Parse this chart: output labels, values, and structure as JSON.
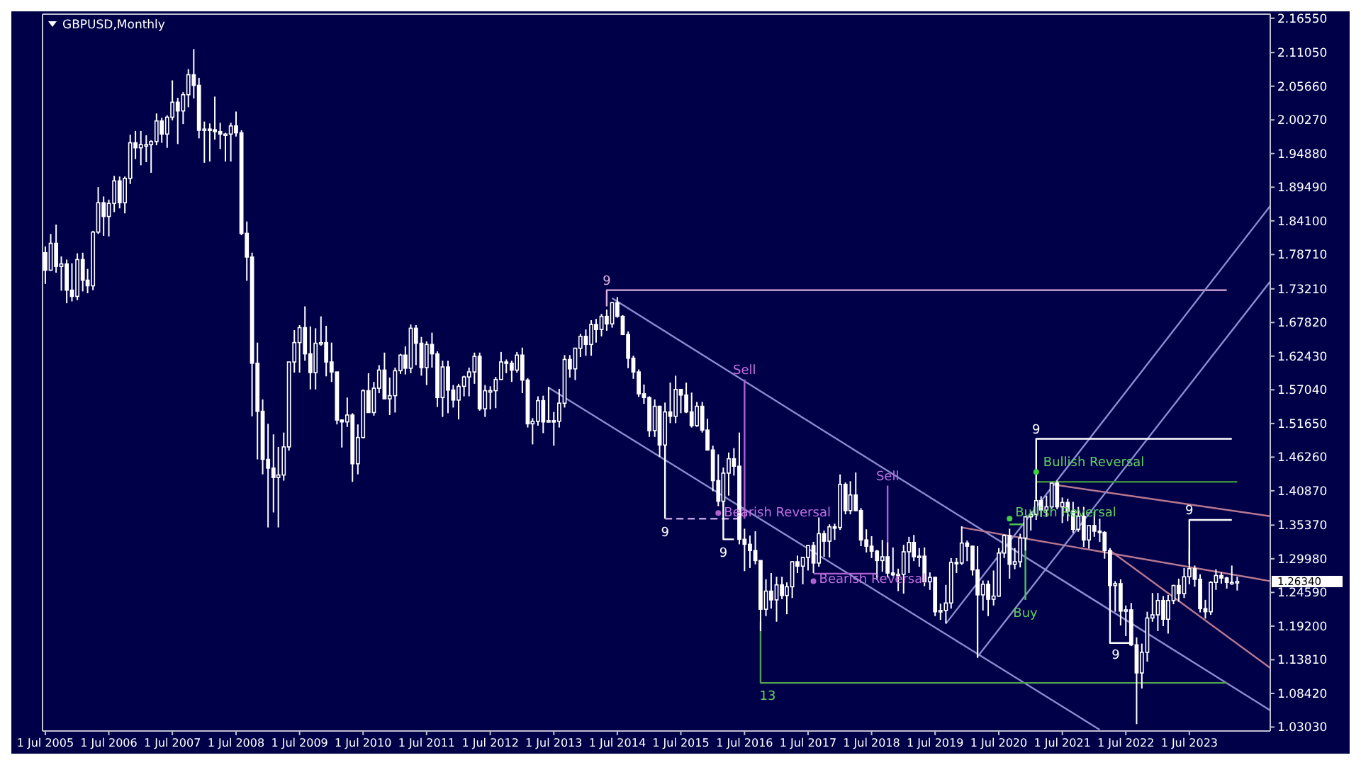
{
  "chart_data": {
    "type": "candlestick",
    "title": "GBPUSD,Monthly",
    "color": "#ffffff",
    "xlim": [
      "2005-06-15",
      "2024-10-08"
    ],
    "xticks": [
      {
        "value": "2005-07-01",
        "label": "1 Jul 2005"
      },
      {
        "value": "2006-07-01",
        "label": "1 Jul 2006"
      },
      {
        "value": "2007-07-01",
        "label": "1 Jul 2007"
      },
      {
        "value": "2008-07-01",
        "label": "1 Jul 2008"
      },
      {
        "value": "2009-07-01",
        "label": "1 Jul 2009"
      },
      {
        "value": "2010-07-01",
        "label": "1 Jul 2010"
      },
      {
        "value": "2011-07-01",
        "label": "1 Jul 2011"
      },
      {
        "value": "2012-07-01",
        "label": "1 Jul 2012"
      },
      {
        "value": "2013-07-01",
        "label": "1 Jul 2013"
      },
      {
        "value": "2014-07-01",
        "label": "1 Jul 2014"
      },
      {
        "value": "2015-07-01",
        "label": "1 Jul 2015"
      },
      {
        "value": "2016-07-01",
        "label": "1 Jul 2016"
      },
      {
        "value": "2017-07-01",
        "label": "1 Jul 2017"
      },
      {
        "value": "2018-07-01",
        "label": "1 Jul 2018"
      },
      {
        "value": "2019-07-01",
        "label": "1 Jul 2019"
      },
      {
        "value": "2020-07-01",
        "label": "1 Jul 2020"
      },
      {
        "value": "2021-07-01",
        "label": "1 Jul 2021"
      },
      {
        "value": "2022-07-01",
        "label": "1 Jul 2022"
      },
      {
        "value": "2023-07-01",
        "label": "1 Jul 2023"
      }
    ],
    "ylim": [
      1.024,
      2.172
    ],
    "yticks": [
      {
        "value": 2.1655,
        "label": "2.16550"
      },
      {
        "value": 2.1105,
        "label": "2.11050"
      },
      {
        "value": 2.0566,
        "label": "2.05660"
      },
      {
        "value": 2.0027,
        "label": "2.00270"
      },
      {
        "value": 1.9488,
        "label": "1.94880"
      },
      {
        "value": 1.8949,
        "label": "1.89490"
      },
      {
        "value": 1.841,
        "label": "1.84100"
      },
      {
        "value": 1.7871,
        "label": "1.78710"
      },
      {
        "value": 1.7321,
        "label": "1.73210"
      },
      {
        "value": 1.6782,
        "label": "1.67820"
      },
      {
        "value": 1.6243,
        "label": "1.62430"
      },
      {
        "value": 1.5704,
        "label": "1.57040"
      },
      {
        "value": 1.5165,
        "label": "1.51650"
      },
      {
        "value": 1.4626,
        "label": "1.46260"
      },
      {
        "value": 1.4087,
        "label": "1.40870"
      },
      {
        "value": 1.3537,
        "label": "1.35370"
      },
      {
        "value": 1.2998,
        "label": "1.29980"
      },
      {
        "value": 1.2459,
        "label": "1.24590"
      },
      {
        "value": 1.192,
        "label": "1.19200"
      },
      {
        "value": 1.1381,
        "label": "1.13810"
      },
      {
        "value": 1.0842,
        "label": "1.08420"
      },
      {
        "value": 1.0303,
        "label": "1.03030"
      }
    ],
    "x": [
      "2005-07",
      "2005-08",
      "2005-09",
      "2005-10",
      "2005-11",
      "2005-12",
      "2006-01",
      "2006-02",
      "2006-03",
      "2006-04",
      "2006-05",
      "2006-06",
      "2006-07",
      "2006-08",
      "2006-09",
      "2006-10",
      "2006-11",
      "2006-12",
      "2007-01",
      "2007-02",
      "2007-03",
      "2007-04",
      "2007-05",
      "2007-06",
      "2007-07",
      "2007-08",
      "2007-09",
      "2007-10",
      "2007-11",
      "2007-12",
      "2008-01",
      "2008-02",
      "2008-03",
      "2008-04",
      "2008-05",
      "2008-06",
      "2008-07",
      "2008-08",
      "2008-09",
      "2008-10",
      "2008-11",
      "2008-12",
      "2009-01",
      "2009-02",
      "2009-03",
      "2009-04",
      "2009-05",
      "2009-06",
      "2009-07",
      "2009-08",
      "2009-09",
      "2009-10",
      "2009-11",
      "2009-12",
      "2010-01",
      "2010-02",
      "2010-03",
      "2010-04",
      "2010-05",
      "2010-06",
      "2010-07",
      "2010-08",
      "2010-09",
      "2010-10",
      "2010-11",
      "2010-12",
      "2011-01",
      "2011-02",
      "2011-03",
      "2011-04",
      "2011-05",
      "2011-06",
      "2011-07",
      "2011-08",
      "2011-09",
      "2011-10",
      "2011-11",
      "2011-12",
      "2012-01",
      "2012-02",
      "2012-03",
      "2012-04",
      "2012-05",
      "2012-06",
      "2012-07",
      "2012-08",
      "2012-09",
      "2012-10",
      "2012-11",
      "2012-12",
      "2013-01",
      "2013-02",
      "2013-03",
      "2013-04",
      "2013-05",
      "2013-06",
      "2013-07",
      "2013-08",
      "2013-09",
      "2013-10",
      "2013-11",
      "2013-12",
      "2014-01",
      "2014-02",
      "2014-03",
      "2014-04",
      "2014-05",
      "2014-06",
      "2014-07",
      "2014-08",
      "2014-09",
      "2014-10",
      "2014-11",
      "2014-12",
      "2015-01",
      "2015-02",
      "2015-03",
      "2015-04",
      "2015-05",
      "2015-06",
      "2015-07",
      "2015-08",
      "2015-09",
      "2015-10",
      "2015-11",
      "2015-12",
      "2016-01",
      "2016-02",
      "2016-03",
      "2016-04",
      "2016-05",
      "2016-06",
      "2016-07",
      "2016-08",
      "2016-09",
      "2016-10",
      "2016-11",
      "2016-12",
      "2017-01",
      "2017-02",
      "2017-03",
      "2017-04",
      "2017-05",
      "2017-06",
      "2017-07",
      "2017-08",
      "2017-09",
      "2017-10",
      "2017-11",
      "2017-12",
      "2018-01",
      "2018-02",
      "2018-03",
      "2018-04",
      "2018-05",
      "2018-06",
      "2018-07",
      "2018-08",
      "2018-09",
      "2018-10",
      "2018-11",
      "2018-12",
      "2019-01",
      "2019-02",
      "2019-03",
      "2019-04",
      "2019-05",
      "2019-06",
      "2019-07",
      "2019-08",
      "2019-09",
      "2019-10",
      "2019-11",
      "2019-12",
      "2020-01",
      "2020-02",
      "2020-03",
      "2020-04",
      "2020-05",
      "2020-06",
      "2020-07",
      "2020-08",
      "2020-09",
      "2020-10",
      "2020-11",
      "2020-12",
      "2021-01",
      "2021-02",
      "2021-03",
      "2021-04",
      "2021-05",
      "2021-06",
      "2021-07",
      "2021-08",
      "2021-09",
      "2021-10",
      "2021-11",
      "2021-12",
      "2022-01",
      "2022-02",
      "2022-03",
      "2022-04",
      "2022-05",
      "2022-06",
      "2022-07",
      "2022-08",
      "2022-09",
      "2022-10",
      "2022-11",
      "2022-12",
      "2023-01",
      "2023-02",
      "2023-03",
      "2023-04",
      "2023-05",
      "2023-06",
      "2023-07",
      "2023-08",
      "2023-09",
      "2023-10",
      "2023-11",
      "2023-12",
      "2024-01",
      "2024-02",
      "2024-03",
      "2024-04"
    ],
    "ohlc": [
      [
        1.79,
        1.8,
        1.74,
        1.762
      ],
      [
        1.762,
        1.82,
        1.761,
        1.805
      ],
      [
        1.805,
        1.835,
        1.758,
        1.768
      ],
      [
        1.768,
        1.784,
        1.729,
        1.772
      ],
      [
        1.772,
        1.779,
        1.709,
        1.73
      ],
      [
        1.73,
        1.773,
        1.712,
        1.72
      ],
      [
        1.72,
        1.789,
        1.714,
        1.779
      ],
      [
        1.779,
        1.79,
        1.728,
        1.746
      ],
      [
        1.746,
        1.764,
        1.725,
        1.737
      ],
      [
        1.737,
        1.825,
        1.73,
        1.823
      ],
      [
        1.823,
        1.895,
        1.82,
        1.87
      ],
      [
        1.87,
        1.88,
        1.817,
        1.848
      ],
      [
        1.848,
        1.875,
        1.816,
        1.869
      ],
      [
        1.869,
        1.913,
        1.855,
        1.905
      ],
      [
        1.905,
        1.912,
        1.861,
        1.87
      ],
      [
        1.87,
        1.912,
        1.853,
        1.909
      ],
      [
        1.909,
        1.979,
        1.9,
        1.966
      ],
      [
        1.966,
        1.985,
        1.94,
        1.958
      ],
      [
        1.958,
        1.985,
        1.93,
        1.963
      ],
      [
        1.963,
        1.978,
        1.935,
        1.963
      ],
      [
        1.963,
        1.97,
        1.918,
        1.968
      ],
      [
        1.968,
        2.013,
        1.962,
        2.001
      ],
      [
        2.001,
        2.006,
        1.966,
        1.98
      ],
      [
        1.98,
        2.01,
        1.958,
        2.007
      ],
      [
        2.007,
        2.066,
        2.002,
        2.031
      ],
      [
        2.031,
        2.038,
        1.964,
        2.017
      ],
      [
        2.017,
        2.047,
        1.996,
        2.043
      ],
      [
        2.043,
        2.084,
        2.023,
        2.075
      ],
      [
        2.075,
        2.116,
        2.037,
        2.058
      ],
      [
        2.058,
        2.07,
        1.973,
        1.986
      ],
      [
        1.986,
        2.0,
        1.934,
        1.988
      ],
      [
        1.988,
        1.997,
        1.936,
        1.987
      ],
      [
        1.987,
        2.04,
        1.971,
        1.984
      ],
      [
        1.984,
        1.998,
        1.956,
        1.98
      ],
      [
        1.98,
        1.982,
        1.936,
        1.98
      ],
      [
        1.98,
        1.998,
        1.936,
        1.993
      ],
      [
        1.993,
        2.016,
        1.976,
        1.982
      ],
      [
        1.982,
        1.986,
        1.818,
        1.821
      ],
      [
        1.821,
        1.84,
        1.745,
        1.783
      ],
      [
        1.783,
        1.79,
        1.528,
        1.613
      ],
      [
        1.613,
        1.646,
        1.459,
        1.536
      ],
      [
        1.536,
        1.555,
        1.435,
        1.459
      ],
      [
        1.459,
        1.516,
        1.35,
        1.445
      ],
      [
        1.445,
        1.499,
        1.374,
        1.43
      ],
      [
        1.43,
        1.479,
        1.35,
        1.434
      ],
      [
        1.434,
        1.502,
        1.425,
        1.479
      ],
      [
        1.479,
        1.615,
        1.473,
        1.615
      ],
      [
        1.615,
        1.666,
        1.598,
        1.646
      ],
      [
        1.646,
        1.674,
        1.598,
        1.67
      ],
      [
        1.67,
        1.704,
        1.617,
        1.628
      ],
      [
        1.628,
        1.672,
        1.571,
        1.598
      ],
      [
        1.598,
        1.669,
        1.571,
        1.645
      ],
      [
        1.645,
        1.688,
        1.641,
        1.646
      ],
      [
        1.646,
        1.673,
        1.592,
        1.615
      ],
      [
        1.615,
        1.646,
        1.583,
        1.599
      ],
      [
        1.599,
        1.599,
        1.515,
        1.522
      ],
      [
        1.522,
        1.523,
        1.478,
        1.519
      ],
      [
        1.519,
        1.558,
        1.511,
        1.53
      ],
      [
        1.53,
        1.533,
        1.423,
        1.452
      ],
      [
        1.452,
        1.515,
        1.435,
        1.494
      ],
      [
        1.494,
        1.571,
        1.493,
        1.569
      ],
      [
        1.569,
        1.597,
        1.534,
        1.534
      ],
      [
        1.534,
        1.583,
        1.529,
        1.573
      ],
      [
        1.573,
        1.61,
        1.565,
        1.602
      ],
      [
        1.602,
        1.63,
        1.556,
        1.556
      ],
      [
        1.556,
        1.59,
        1.53,
        1.561
      ],
      [
        1.561,
        1.606,
        1.534,
        1.601
      ],
      [
        1.601,
        1.628,
        1.596,
        1.626
      ],
      [
        1.626,
        1.64,
        1.595,
        1.605
      ],
      [
        1.605,
        1.675,
        1.597,
        1.669
      ],
      [
        1.669,
        1.674,
        1.61,
        1.645
      ],
      [
        1.645,
        1.655,
        1.593,
        1.606
      ],
      [
        1.606,
        1.648,
        1.578,
        1.643
      ],
      [
        1.643,
        1.662,
        1.606,
        1.628
      ],
      [
        1.628,
        1.632,
        1.543,
        1.558
      ],
      [
        1.558,
        1.617,
        1.527,
        1.607
      ],
      [
        1.607,
        1.617,
        1.533,
        1.57
      ],
      [
        1.57,
        1.578,
        1.542,
        1.554
      ],
      [
        1.554,
        1.58,
        1.523,
        1.576
      ],
      [
        1.576,
        1.593,
        1.56,
        1.591
      ],
      [
        1.591,
        1.606,
        1.56,
        1.599
      ],
      [
        1.599,
        1.63,
        1.58,
        1.624
      ],
      [
        1.624,
        1.63,
        1.537,
        1.54
      ],
      [
        1.54,
        1.578,
        1.527,
        1.569
      ],
      [
        1.569,
        1.576,
        1.539,
        1.569
      ],
      [
        1.569,
        1.591,
        1.541,
        1.587
      ],
      [
        1.587,
        1.631,
        1.586,
        1.615
      ],
      [
        1.615,
        1.619,
        1.597,
        1.613
      ],
      [
        1.613,
        1.617,
        1.583,
        1.602
      ],
      [
        1.602,
        1.631,
        1.598,
        1.626
      ],
      [
        1.626,
        1.638,
        1.565,
        1.586
      ],
      [
        1.586,
        1.589,
        1.51,
        1.516
      ],
      [
        1.516,
        1.525,
        1.483,
        1.52
      ],
      [
        1.52,
        1.56,
        1.513,
        1.553
      ],
      [
        1.553,
        1.561,
        1.501,
        1.519
      ],
      [
        1.519,
        1.575,
        1.518,
        1.521
      ],
      [
        1.521,
        1.535,
        1.481,
        1.52
      ],
      [
        1.52,
        1.572,
        1.51,
        1.549
      ],
      [
        1.549,
        1.626,
        1.542,
        1.619
      ],
      [
        1.619,
        1.626,
        1.59,
        1.604
      ],
      [
        1.604,
        1.638,
        1.586,
        1.637
      ],
      [
        1.637,
        1.66,
        1.623,
        1.656
      ],
      [
        1.656,
        1.667,
        1.625,
        1.643
      ],
      [
        1.643,
        1.682,
        1.625,
        1.675
      ],
      [
        1.675,
        1.684,
        1.646,
        1.667
      ],
      [
        1.667,
        1.692,
        1.656,
        1.688
      ],
      [
        1.688,
        1.699,
        1.665,
        1.676
      ],
      [
        1.676,
        1.711,
        1.67,
        1.71
      ],
      [
        1.71,
        1.719,
        1.686,
        1.688
      ],
      [
        1.688,
        1.69,
        1.658,
        1.659
      ],
      [
        1.659,
        1.664,
        1.605,
        1.621
      ],
      [
        1.621,
        1.625,
        1.588,
        1.599
      ],
      [
        1.599,
        1.603,
        1.559,
        1.564
      ],
      [
        1.564,
        1.579,
        1.548,
        1.558
      ],
      [
        1.558,
        1.56,
        1.495,
        1.505
      ],
      [
        1.505,
        1.555,
        1.495,
        1.544
      ],
      [
        1.544,
        1.545,
        1.463,
        1.482
      ],
      [
        1.482,
        1.55,
        1.456,
        1.535
      ],
      [
        1.535,
        1.582,
        1.517,
        1.528
      ],
      [
        1.528,
        1.593,
        1.517,
        1.571
      ],
      [
        1.571,
        1.572,
        1.533,
        1.562
      ],
      [
        1.562,
        1.582,
        1.533,
        1.535
      ],
      [
        1.535,
        1.566,
        1.51,
        1.513
      ],
      [
        1.513,
        1.551,
        1.511,
        1.544
      ],
      [
        1.544,
        1.551,
        1.502,
        1.506
      ],
      [
        1.506,
        1.524,
        1.474,
        1.474
      ],
      [
        1.474,
        1.481,
        1.408,
        1.425
      ],
      [
        1.425,
        1.467,
        1.384,
        1.392
      ],
      [
        1.392,
        1.446,
        1.384,
        1.437
      ],
      [
        1.437,
        1.47,
        1.401,
        1.46
      ],
      [
        1.46,
        1.477,
        1.433,
        1.448
      ],
      [
        1.448,
        1.502,
        1.323,
        1.331
      ],
      [
        1.331,
        1.348,
        1.28,
        1.323
      ],
      [
        1.323,
        1.337,
        1.285,
        1.313
      ],
      [
        1.313,
        1.344,
        1.291,
        1.297
      ],
      [
        1.297,
        1.297,
        1.184,
        1.219
      ],
      [
        1.219,
        1.267,
        1.208,
        1.248
      ],
      [
        1.248,
        1.277,
        1.22,
        1.234
      ],
      [
        1.234,
        1.271,
        1.199,
        1.258
      ],
      [
        1.258,
        1.271,
        1.235,
        1.241
      ],
      [
        1.241,
        1.262,
        1.211,
        1.255
      ],
      [
        1.255,
        1.296,
        1.237,
        1.295
      ],
      [
        1.295,
        1.305,
        1.277,
        1.288
      ],
      [
        1.288,
        1.303,
        1.259,
        1.302
      ],
      [
        1.302,
        1.321,
        1.281,
        1.321
      ],
      [
        1.321,
        1.327,
        1.277,
        1.293
      ],
      [
        1.293,
        1.366,
        1.287,
        1.34
      ],
      [
        1.34,
        1.345,
        1.303,
        1.328
      ],
      [
        1.328,
        1.355,
        1.302,
        1.351
      ],
      [
        1.351,
        1.356,
        1.33,
        1.35
      ],
      [
        1.35,
        1.435,
        1.346,
        1.419
      ],
      [
        1.419,
        1.422,
        1.371,
        1.377
      ],
      [
        1.377,
        1.424,
        1.371,
        1.402
      ],
      [
        1.402,
        1.438,
        1.376,
        1.377
      ],
      [
        1.377,
        1.381,
        1.32,
        1.33
      ],
      [
        1.33,
        1.347,
        1.31,
        1.32
      ],
      [
        1.32,
        1.336,
        1.301,
        1.312
      ],
      [
        1.312,
        1.314,
        1.266,
        1.297
      ],
      [
        1.297,
        1.33,
        1.279,
        1.303
      ],
      [
        1.303,
        1.326,
        1.27,
        1.277
      ],
      [
        1.277,
        1.318,
        1.272,
        1.274
      ],
      [
        1.274,
        1.284,
        1.248,
        1.275
      ],
      [
        1.275,
        1.322,
        1.244,
        1.311
      ],
      [
        1.311,
        1.335,
        1.277,
        1.326
      ],
      [
        1.326,
        1.338,
        1.296,
        1.303
      ],
      [
        1.303,
        1.317,
        1.287,
        1.304
      ],
      [
        1.304,
        1.318,
        1.256,
        1.263
      ],
      [
        1.263,
        1.278,
        1.25,
        1.27
      ],
      [
        1.27,
        1.271,
        1.208,
        1.215
      ],
      [
        1.215,
        1.228,
        1.202,
        1.217
      ],
      [
        1.217,
        1.258,
        1.196,
        1.229
      ],
      [
        1.229,
        1.301,
        1.22,
        1.294
      ],
      [
        1.294,
        1.301,
        1.277,
        1.293
      ],
      [
        1.293,
        1.352,
        1.29,
        1.325
      ],
      [
        1.325,
        1.329,
        1.296,
        1.32
      ],
      [
        1.32,
        1.321,
        1.273,
        1.282
      ],
      [
        1.282,
        1.32,
        1.141,
        1.242
      ],
      [
        1.242,
        1.265,
        1.217,
        1.259
      ],
      [
        1.259,
        1.265,
        1.208,
        1.235
      ],
      [
        1.235,
        1.281,
        1.225,
        1.24
      ],
      [
        1.24,
        1.317,
        1.239,
        1.309
      ],
      [
        1.309,
        1.339,
        1.301,
        1.337
      ],
      [
        1.337,
        1.348,
        1.268,
        1.291
      ],
      [
        1.291,
        1.317,
        1.283,
        1.295
      ],
      [
        1.295,
        1.34,
        1.286,
        1.333
      ],
      [
        1.333,
        1.368,
        1.313,
        1.367
      ],
      [
        1.367,
        1.376,
        1.345,
        1.371
      ],
      [
        1.371,
        1.424,
        1.362,
        1.393
      ],
      [
        1.393,
        1.4,
        1.367,
        1.378
      ],
      [
        1.378,
        1.401,
        1.367,
        1.383
      ],
      [
        1.383,
        1.422,
        1.38,
        1.421
      ],
      [
        1.421,
        1.425,
        1.379,
        1.383
      ],
      [
        1.383,
        1.398,
        1.357,
        1.39
      ],
      [
        1.39,
        1.396,
        1.36,
        1.376
      ],
      [
        1.376,
        1.391,
        1.341,
        1.347
      ],
      [
        1.347,
        1.383,
        1.343,
        1.368
      ],
      [
        1.368,
        1.383,
        1.319,
        1.33
      ],
      [
        1.33,
        1.353,
        1.316,
        1.353
      ],
      [
        1.353,
        1.375,
        1.335,
        1.344
      ],
      [
        1.344,
        1.364,
        1.327,
        1.342
      ],
      [
        1.342,
        1.344,
        1.3,
        1.313
      ],
      [
        1.313,
        1.317,
        1.241,
        1.257
      ],
      [
        1.257,
        1.264,
        1.215,
        1.26
      ],
      [
        1.26,
        1.267,
        1.193,
        1.216
      ],
      [
        1.216,
        1.225,
        1.176,
        1.218
      ],
      [
        1.218,
        1.229,
        1.16,
        1.162
      ],
      [
        1.162,
        1.174,
        1.035,
        1.117
      ],
      [
        1.117,
        1.164,
        1.092,
        1.15
      ],
      [
        1.15,
        1.215,
        1.135,
        1.205
      ],
      [
        1.205,
        1.245,
        1.199,
        1.21
      ],
      [
        1.21,
        1.245,
        1.184,
        1.233
      ],
      [
        1.233,
        1.24,
        1.192,
        1.203
      ],
      [
        1.203,
        1.242,
        1.18,
        1.233
      ],
      [
        1.233,
        1.258,
        1.227,
        1.257
      ],
      [
        1.257,
        1.268,
        1.231,
        1.244
      ],
      [
        1.244,
        1.285,
        1.237,
        1.271
      ],
      [
        1.271,
        1.314,
        1.259,
        1.284
      ],
      [
        1.284,
        1.289,
        1.255,
        1.267
      ],
      [
        1.267,
        1.275,
        1.214,
        1.22
      ],
      [
        1.22,
        1.234,
        1.204,
        1.215
      ],
      [
        1.215,
        1.264,
        1.21,
        1.262
      ],
      [
        1.262,
        1.283,
        1.25,
        1.273
      ],
      [
        1.273,
        1.278,
        1.26,
        1.269
      ],
      [
        1.269,
        1.271,
        1.252,
        1.262
      ],
      [
        1.262,
        1.289,
        1.258,
        1.262
      ],
      [
        1.262,
        1.271,
        1.249,
        1.2634
      ]
    ],
    "series": [
      {
        "type": "line",
        "color": "#e0b0e0",
        "x": [
          "2014-05",
          "2014-05",
          "2024-02"
        ],
        "values": [
          1.704,
          1.73,
          1.73
        ]
      },
      {
        "type": "line",
        "color": "#8c8cd0",
        "x": [
          "2014-06",
          "2024-10-08"
        ],
        "values": [
          1.717,
          1.057
        ]
      },
      {
        "type": "line",
        "color": "#8c8cd0",
        "x": [
          "2013-06",
          "2022-02"
        ],
        "values": [
          1.574,
          1.026
        ]
      },
      {
        "type": "line",
        "color": "#b87890",
        "x": [
          "2019-12",
          "2024-10-08"
        ],
        "values": [
          1.35,
          1.264
        ]
      },
      {
        "type": "line",
        "color": "#b87890",
        "x": [
          "2021-05",
          "2024-10-08"
        ],
        "values": [
          1.419,
          1.368
        ]
      },
      {
        "type": "line",
        "color": "#b87890",
        "x": [
          "2022-04",
          "2024-10-08"
        ],
        "values": [
          1.313,
          1.125
        ]
      },
      {
        "type": "line",
        "color": "#8c8cd0",
        "x": [
          "2019-09",
          "2024-10-08"
        ],
        "values": [
          1.196,
          1.865
        ]
      },
      {
        "type": "line",
        "color": "#8c8cd0",
        "x": [
          "2020-03",
          "2024-10-08"
        ],
        "values": [
          1.143,
          1.744
        ]
      },
      {
        "type": "line",
        "color": "#8c8cd0",
        "x": [
          "2020-03",
          "2020-03"
        ],
        "values": [
          1.284,
          1.143
        ]
      },
      {
        "type": "line",
        "color": "#b060d0",
        "x": [
          "2016-07",
          "2016-07"
        ],
        "values": [
          1.587,
          1.364
        ]
      },
      {
        "type": "line",
        "color": "#ffffff",
        "x": [
          "2015-04",
          "2015-04"
        ],
        "values": [
          1.483,
          1.364
        ]
      },
      {
        "type": "line",
        "color": "#c0a0e0",
        "line_style": "dashed",
        "x": [
          "2015-04",
          "2016-07"
        ],
        "values": [
          1.364,
          1.364
        ]
      },
      {
        "type": "line",
        "color": "#ffffff",
        "x": [
          "2016-03",
          "2016-03",
          "2016-05"
        ],
        "values": [
          1.395,
          1.331,
          1.331
        ]
      },
      {
        "type": "line",
        "color": "#b060d0",
        "x": [
          "2017-08",
          "2018-08"
        ],
        "values": [
          1.276,
          1.276
        ]
      },
      {
        "type": "line",
        "color": "#b060d0",
        "x": [
          "2018-10",
          "2018-10"
        ],
        "values": [
          1.417,
          1.28
        ]
      },
      {
        "type": "line",
        "color": "#50a050",
        "x": [
          "2016-10",
          "2016-10",
          "2024-02"
        ],
        "values": [
          1.2,
          1.101,
          1.101
        ]
      },
      {
        "type": "line",
        "color": "#50c050",
        "x": [
          "2020-09",
          "2020-12",
          "2020-12"
        ],
        "values": [
          1.355,
          1.355,
          1.234
        ]
      },
      {
        "type": "line",
        "color": "#3c8a3c",
        "x": [
          "2021-02",
          "2024-04"
        ],
        "values": [
          1.423,
          1.423
        ]
      },
      {
        "type": "line",
        "color": "#ffffff",
        "x": [
          "2021-02",
          "2021-02",
          "2024-03"
        ],
        "values": [
          1.395,
          1.492,
          1.492
        ]
      },
      {
        "type": "line",
        "color": "#ffffff",
        "x": [
          "2023-07",
          "2023-07",
          "2024-03"
        ],
        "values": [
          1.291,
          1.362,
          1.362
        ]
      },
      {
        "type": "line",
        "color": "#ffffff",
        "x": [
          "2022-04",
          "2022-04",
          "2022-08"
        ],
        "values": [
          1.276,
          1.165,
          1.165
        ]
      },
      {
        "type": "scatter",
        "marker": "circle",
        "color": "#b060d0",
        "x": [
          "2016-02",
          "2017-08"
        ],
        "values": [
          1.373,
          1.264
        ]
      },
      {
        "type": "scatter",
        "marker": "circle",
        "color": "#40d040",
        "x": [
          "2020-09",
          "2021-02"
        ],
        "values": [
          1.364,
          1.439
        ]
      }
    ],
    "annotations": [
      {
        "text": "9",
        "x": "2014-05",
        "y": 1.73
      },
      {
        "text": "Sell",
        "x": "2016-07",
        "y": 1.587
      },
      {
        "text": "9",
        "x": "2015-04",
        "y": 1.364
      },
      {
        "text": "9",
        "x": "2016-03",
        "y": 1.331
      },
      {
        "text": "Bearish Reversal",
        "x": "2016-02",
        "y": 1.373
      },
      {
        "text": "Bearish Reversal",
        "x": "2017-08",
        "y": 1.264
      },
      {
        "text": "Sell",
        "x": "2018-10",
        "y": 1.417
      },
      {
        "text": "13",
        "x": "2016-10",
        "y": 1.101
      },
      {
        "text": "Buy",
        "x": "2020-12",
        "y": 1.234
      },
      {
        "text": "Bullish Reversal",
        "x": "2020-09",
        "y": 1.364
      },
      {
        "text": "Bullish Reversal",
        "x": "2021-02",
        "y": 1.439
      },
      {
        "text": "9",
        "x": "2021-02",
        "y": 1.492
      },
      {
        "text": "9",
        "x": "2023-07",
        "y": 1.362
      },
      {
        "text": "9",
        "x": "2022-04",
        "y": 1.165
      },
      "1.26340"
    ]
  }
}
